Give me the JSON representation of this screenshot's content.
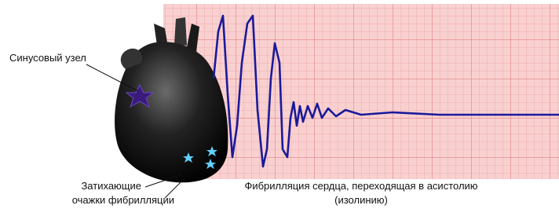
{
  "labels": {
    "sinus_node": "Синусовый узел",
    "fading_foci": [
      "Затихающие",
      "очажки фибрилляции"
    ],
    "caption": [
      "Фибрилляция сердца, переходящая в асистолию",
      "(изолинию)"
    ]
  }
}
